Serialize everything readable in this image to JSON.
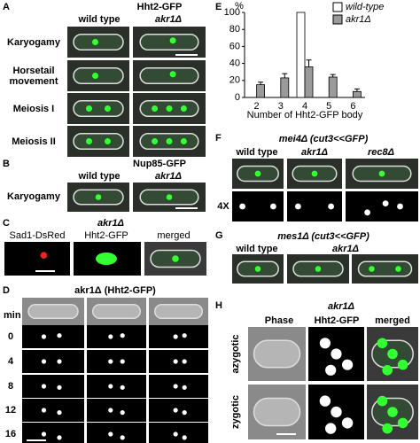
{
  "panels": {
    "A": {
      "label": "A",
      "title": "Hht2-GFP",
      "columns": [
        "wild type",
        "akr1Δ"
      ],
      "rows": [
        "Karyogamy",
        "Horsetail movement",
        "Meiosis I",
        "Meiosis II"
      ]
    },
    "B": {
      "label": "B",
      "title": "Nup85-GFP",
      "columns": [
        "wild type",
        "akr1Δ"
      ],
      "rows": [
        "Karyogamy"
      ]
    },
    "C": {
      "label": "C",
      "title": "akr1Δ",
      "columns": [
        "Sad1-DsRed",
        "Hht2-GFP",
        "merged"
      ]
    },
    "D": {
      "label": "D",
      "title": "akr1Δ (Hht2-GFP)",
      "unit": "min",
      "rows": [
        "0",
        "4",
        "8",
        "12",
        "16"
      ]
    },
    "E": {
      "label": "E"
    },
    "F": {
      "label": "F",
      "title": "mei4Δ (cut3<<GFP)",
      "columns": [
        "wild type",
        "akr1Δ",
        "rec8Δ"
      ],
      "rows": [
        "4X"
      ]
    },
    "G": {
      "label": "G",
      "title": "mes1Δ (cut3<<GFP)",
      "columns": [
        "wild type",
        "akr1Δ"
      ]
    },
    "H": {
      "label": "H",
      "title": "akr1Δ",
      "columns": [
        "Phase",
        "Hht2-GFP",
        "merged"
      ],
      "rows": [
        "azygotic",
        "zygotic"
      ]
    }
  },
  "chart_data": {
    "type": "bar",
    "y_label": "%",
    "x_label": "Number of Hht2-GFP body",
    "categories": [
      "2",
      "3",
      "4",
      "5",
      "6"
    ],
    "series": [
      {
        "name": "wild-type",
        "color": "#ffffff",
        "values": [
          0,
          0,
          100,
          0,
          0
        ]
      },
      {
        "name": "akr1Δ",
        "color": "#9a9a9a",
        "values": [
          15,
          23,
          36,
          24,
          7
        ],
        "errors": [
          3,
          5,
          8,
          3,
          3
        ]
      }
    ],
    "ylim": [
      0,
      100
    ],
    "yticks": [
      0,
      20,
      40,
      60,
      80,
      100
    ]
  }
}
